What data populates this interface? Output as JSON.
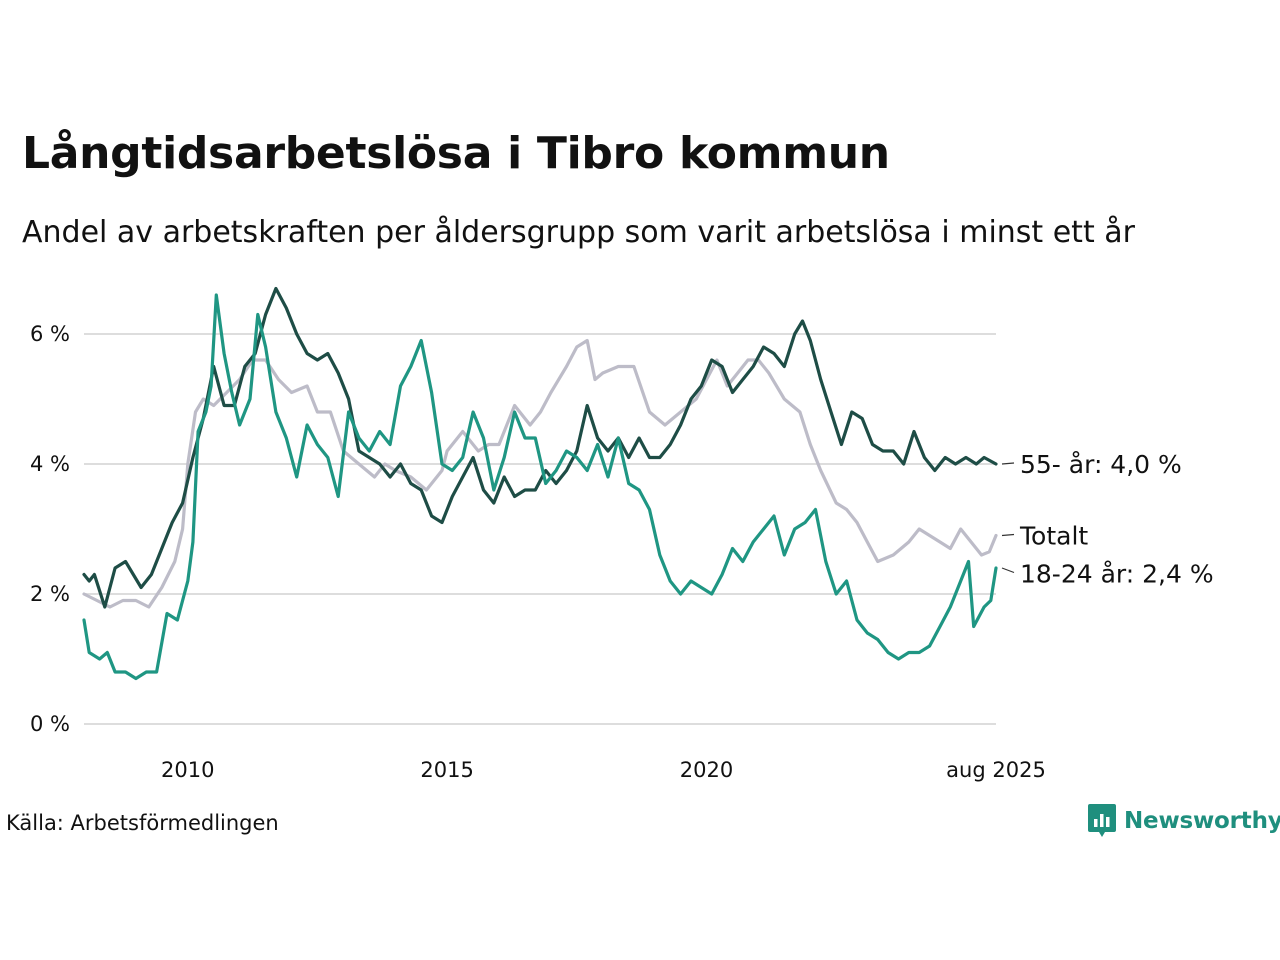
{
  "title": "Långtidsarbetslösa i Tibro kommun",
  "subtitle": "Andel av arbetskraften per åldersgrupp som varit arbetslösa i minst ett år",
  "source": "Källa: Arbetsförmedlingen",
  "brand": "Newsworthy",
  "colors": {
    "series_55": "#1e4d46",
    "series_total": "#bdbcc8",
    "series_18_24": "#1f9683",
    "grid": "#dddddd",
    "brand": "#1f8f7e"
  },
  "chart_data": {
    "type": "line",
    "x_unit": "year",
    "xlim": [
      2008.0,
      2025.58
    ],
    "ylim": [
      0,
      6.8
    ],
    "y_ticks": [
      {
        "value": 0,
        "label": "0 %"
      },
      {
        "value": 2,
        "label": "2 %"
      },
      {
        "value": 4,
        "label": "4 %"
      },
      {
        "value": 6,
        "label": "6 %"
      }
    ],
    "x_ticks": [
      {
        "value": 2010,
        "label": "2010"
      },
      {
        "value": 2015,
        "label": "2015"
      },
      {
        "value": 2020,
        "label": "2020"
      },
      {
        "value": 2025.58,
        "label": "aug 2025"
      }
    ],
    "grid": true,
    "series": [
      {
        "name": "Totalt",
        "end_label": "Totalt",
        "color": "#bdbcc8",
        "points": [
          [
            2008.0,
            2.0
          ],
          [
            2008.25,
            1.9
          ],
          [
            2008.5,
            1.8
          ],
          [
            2008.75,
            1.9
          ],
          [
            2009.0,
            1.9
          ],
          [
            2009.25,
            1.8
          ],
          [
            2009.5,
            2.1
          ],
          [
            2009.75,
            2.5
          ],
          [
            2009.9,
            3.0
          ],
          [
            2010.0,
            4.0
          ],
          [
            2010.15,
            4.8
          ],
          [
            2010.3,
            5.0
          ],
          [
            2010.5,
            4.9
          ],
          [
            2010.75,
            5.1
          ],
          [
            2011.0,
            5.3
          ],
          [
            2011.25,
            5.6
          ],
          [
            2011.5,
            5.6
          ],
          [
            2011.75,
            5.3
          ],
          [
            2012.0,
            5.1
          ],
          [
            2012.3,
            5.2
          ],
          [
            2012.5,
            4.8
          ],
          [
            2012.75,
            4.8
          ],
          [
            2013.0,
            4.2
          ],
          [
            2013.3,
            4.0
          ],
          [
            2013.6,
            3.8
          ],
          [
            2013.8,
            4.0
          ],
          [
            2014.0,
            3.9
          ],
          [
            2014.3,
            3.8
          ],
          [
            2014.6,
            3.6
          ],
          [
            2014.9,
            3.9
          ],
          [
            2015.0,
            4.2
          ],
          [
            2015.3,
            4.5
          ],
          [
            2015.6,
            4.2
          ],
          [
            2015.8,
            4.3
          ],
          [
            2016.0,
            4.3
          ],
          [
            2016.3,
            4.9
          ],
          [
            2016.6,
            4.6
          ],
          [
            2016.8,
            4.8
          ],
          [
            2017.0,
            5.1
          ],
          [
            2017.3,
            5.5
          ],
          [
            2017.5,
            5.8
          ],
          [
            2017.7,
            5.9
          ],
          [
            2017.85,
            5.3
          ],
          [
            2018.0,
            5.4
          ],
          [
            2018.3,
            5.5
          ],
          [
            2018.6,
            5.5
          ],
          [
            2018.9,
            4.8
          ],
          [
            2019.2,
            4.6
          ],
          [
            2019.5,
            4.8
          ],
          [
            2019.8,
            5.0
          ],
          [
            2020.0,
            5.3
          ],
          [
            2020.2,
            5.6
          ],
          [
            2020.4,
            5.2
          ],
          [
            2020.6,
            5.4
          ],
          [
            2020.8,
            5.6
          ],
          [
            2021.0,
            5.6
          ],
          [
            2021.2,
            5.4
          ],
          [
            2021.5,
            5.0
          ],
          [
            2021.8,
            4.8
          ],
          [
            2022.0,
            4.3
          ],
          [
            2022.2,
            3.9
          ],
          [
            2022.5,
            3.4
          ],
          [
            2022.7,
            3.3
          ],
          [
            2022.9,
            3.1
          ],
          [
            2023.1,
            2.8
          ],
          [
            2023.3,
            2.5
          ],
          [
            2023.6,
            2.6
          ],
          [
            2023.9,
            2.8
          ],
          [
            2024.1,
            3.0
          ],
          [
            2024.3,
            2.9
          ],
          [
            2024.5,
            2.8
          ],
          [
            2024.7,
            2.7
          ],
          [
            2024.9,
            3.0
          ],
          [
            2025.1,
            2.8
          ],
          [
            2025.3,
            2.6
          ],
          [
            2025.45,
            2.65
          ],
          [
            2025.58,
            2.9
          ]
        ]
      },
      {
        "name": "55- år",
        "end_label": "55- år: 4,0 %",
        "color": "#1e4d46",
        "points": [
          [
            2008.0,
            2.3
          ],
          [
            2008.1,
            2.2
          ],
          [
            2008.2,
            2.3
          ],
          [
            2008.4,
            1.8
          ],
          [
            2008.6,
            2.4
          ],
          [
            2008.8,
            2.5
          ],
          [
            2008.95,
            2.3
          ],
          [
            2009.1,
            2.1
          ],
          [
            2009.3,
            2.3
          ],
          [
            2009.5,
            2.7
          ],
          [
            2009.7,
            3.1
          ],
          [
            2009.9,
            3.4
          ],
          [
            2010.1,
            4.1
          ],
          [
            2010.3,
            4.7
          ],
          [
            2010.5,
            5.5
          ],
          [
            2010.7,
            4.9
          ],
          [
            2010.9,
            4.9
          ],
          [
            2011.1,
            5.5
          ],
          [
            2011.3,
            5.7
          ],
          [
            2011.5,
            6.3
          ],
          [
            2011.7,
            6.7
          ],
          [
            2011.9,
            6.4
          ],
          [
            2012.1,
            6.0
          ],
          [
            2012.3,
            5.7
          ],
          [
            2012.5,
            5.6
          ],
          [
            2012.7,
            5.7
          ],
          [
            2012.9,
            5.4
          ],
          [
            2013.1,
            5.0
          ],
          [
            2013.3,
            4.2
          ],
          [
            2013.5,
            4.1
          ],
          [
            2013.7,
            4.0
          ],
          [
            2013.9,
            3.8
          ],
          [
            2014.1,
            4.0
          ],
          [
            2014.3,
            3.7
          ],
          [
            2014.5,
            3.6
          ],
          [
            2014.7,
            3.2
          ],
          [
            2014.9,
            3.1
          ],
          [
            2015.1,
            3.5
          ],
          [
            2015.3,
            3.8
          ],
          [
            2015.5,
            4.1
          ],
          [
            2015.7,
            3.6
          ],
          [
            2015.9,
            3.4
          ],
          [
            2016.1,
            3.8
          ],
          [
            2016.3,
            3.5
          ],
          [
            2016.5,
            3.6
          ],
          [
            2016.7,
            3.6
          ],
          [
            2016.9,
            3.9
          ],
          [
            2017.1,
            3.7
          ],
          [
            2017.3,
            3.9
          ],
          [
            2017.5,
            4.2
          ],
          [
            2017.7,
            4.9
          ],
          [
            2017.9,
            4.4
          ],
          [
            2018.1,
            4.2
          ],
          [
            2018.3,
            4.4
          ],
          [
            2018.5,
            4.1
          ],
          [
            2018.7,
            4.4
          ],
          [
            2018.9,
            4.1
          ],
          [
            2019.1,
            4.1
          ],
          [
            2019.3,
            4.3
          ],
          [
            2019.5,
            4.6
          ],
          [
            2019.7,
            5.0
          ],
          [
            2019.9,
            5.2
          ],
          [
            2020.1,
            5.6
          ],
          [
            2020.3,
            5.5
          ],
          [
            2020.5,
            5.1
          ],
          [
            2020.7,
            5.3
          ],
          [
            2020.9,
            5.5
          ],
          [
            2021.1,
            5.8
          ],
          [
            2021.3,
            5.7
          ],
          [
            2021.5,
            5.5
          ],
          [
            2021.7,
            6.0
          ],
          [
            2021.85,
            6.2
          ],
          [
            2022.0,
            5.9
          ],
          [
            2022.2,
            5.3
          ],
          [
            2022.4,
            4.8
          ],
          [
            2022.6,
            4.3
          ],
          [
            2022.8,
            4.8
          ],
          [
            2023.0,
            4.7
          ],
          [
            2023.2,
            4.3
          ],
          [
            2023.4,
            4.2
          ],
          [
            2023.6,
            4.2
          ],
          [
            2023.8,
            4.0
          ],
          [
            2024.0,
            4.5
          ],
          [
            2024.2,
            4.1
          ],
          [
            2024.4,
            3.9
          ],
          [
            2024.6,
            4.1
          ],
          [
            2024.8,
            4.0
          ],
          [
            2025.0,
            4.1
          ],
          [
            2025.2,
            4.0
          ],
          [
            2025.35,
            4.1
          ],
          [
            2025.58,
            4.0
          ]
        ]
      },
      {
        "name": "18-24 år",
        "end_label": "18-24 år: 2,4 %",
        "color": "#1f9683",
        "points": [
          [
            2008.0,
            1.6
          ],
          [
            2008.1,
            1.1
          ],
          [
            2008.3,
            1.0
          ],
          [
            2008.45,
            1.1
          ],
          [
            2008.6,
            0.8
          ],
          [
            2008.8,
            0.8
          ],
          [
            2009.0,
            0.7
          ],
          [
            2009.2,
            0.8
          ],
          [
            2009.4,
            0.8
          ],
          [
            2009.6,
            1.7
          ],
          [
            2009.8,
            1.6
          ],
          [
            2010.0,
            2.2
          ],
          [
            2010.1,
            2.8
          ],
          [
            2010.2,
            4.5
          ],
          [
            2010.35,
            4.8
          ],
          [
            2010.45,
            5.2
          ],
          [
            2010.55,
            6.6
          ],
          [
            2010.7,
            5.7
          ],
          [
            2010.85,
            5.1
          ],
          [
            2011.0,
            4.6
          ],
          [
            2011.2,
            5.0
          ],
          [
            2011.35,
            6.3
          ],
          [
            2011.5,
            5.8
          ],
          [
            2011.7,
            4.8
          ],
          [
            2011.9,
            4.4
          ],
          [
            2012.1,
            3.8
          ],
          [
            2012.3,
            4.6
          ],
          [
            2012.5,
            4.3
          ],
          [
            2012.7,
            4.1
          ],
          [
            2012.9,
            3.5
          ],
          [
            2013.1,
            4.8
          ],
          [
            2013.3,
            4.4
          ],
          [
            2013.5,
            4.2
          ],
          [
            2013.7,
            4.5
          ],
          [
            2013.9,
            4.3
          ],
          [
            2014.1,
            5.2
          ],
          [
            2014.3,
            5.5
          ],
          [
            2014.5,
            5.9
          ],
          [
            2014.7,
            5.1
          ],
          [
            2014.9,
            4.0
          ],
          [
            2015.1,
            3.9
          ],
          [
            2015.3,
            4.1
          ],
          [
            2015.5,
            4.8
          ],
          [
            2015.7,
            4.4
          ],
          [
            2015.9,
            3.6
          ],
          [
            2016.1,
            4.1
          ],
          [
            2016.3,
            4.8
          ],
          [
            2016.5,
            4.4
          ],
          [
            2016.7,
            4.4
          ],
          [
            2016.9,
            3.7
          ],
          [
            2017.1,
            3.9
          ],
          [
            2017.3,
            4.2
          ],
          [
            2017.5,
            4.1
          ],
          [
            2017.7,
            3.9
          ],
          [
            2017.9,
            4.3
          ],
          [
            2018.1,
            3.8
          ],
          [
            2018.3,
            4.4
          ],
          [
            2018.5,
            3.7
          ],
          [
            2018.7,
            3.6
          ],
          [
            2018.9,
            3.3
          ],
          [
            2019.1,
            2.6
          ],
          [
            2019.3,
            2.2
          ],
          [
            2019.5,
            2.0
          ],
          [
            2019.7,
            2.2
          ],
          [
            2019.9,
            2.1
          ],
          [
            2020.1,
            2.0
          ],
          [
            2020.3,
            2.3
          ],
          [
            2020.5,
            2.7
          ],
          [
            2020.7,
            2.5
          ],
          [
            2020.9,
            2.8
          ],
          [
            2021.1,
            3.0
          ],
          [
            2021.3,
            3.2
          ],
          [
            2021.5,
            2.6
          ],
          [
            2021.7,
            3.0
          ],
          [
            2021.9,
            3.1
          ],
          [
            2022.1,
            3.3
          ],
          [
            2022.3,
            2.5
          ],
          [
            2022.5,
            2.0
          ],
          [
            2022.7,
            2.2
          ],
          [
            2022.9,
            1.6
          ],
          [
            2023.1,
            1.4
          ],
          [
            2023.3,
            1.3
          ],
          [
            2023.5,
            1.1
          ],
          [
            2023.7,
            1.0
          ],
          [
            2023.9,
            1.1
          ],
          [
            2024.1,
            1.1
          ],
          [
            2024.3,
            1.2
          ],
          [
            2024.5,
            1.5
          ],
          [
            2024.7,
            1.8
          ],
          [
            2024.9,
            2.2
          ],
          [
            2025.05,
            2.5
          ],
          [
            2025.15,
            1.5
          ],
          [
            2025.35,
            1.8
          ],
          [
            2025.48,
            1.9
          ],
          [
            2025.58,
            2.4
          ]
        ]
      }
    ]
  }
}
